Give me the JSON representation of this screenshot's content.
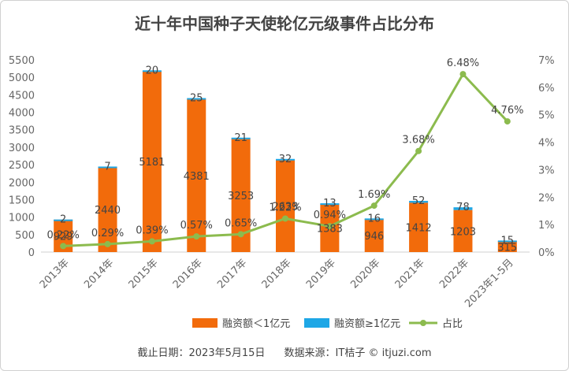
{
  "chart_data": {
    "type": "bar",
    "title": "近十年中国种子天使轮亿元级事件占比分布",
    "categories": [
      "2013年",
      "2014年",
      "2015年",
      "2016年",
      "2017年",
      "2018年",
      "2019年",
      "2020年",
      "2021年",
      "2022年",
      "2023年1-5月"
    ],
    "series": [
      {
        "name": "融资额＜1亿元",
        "type": "bar",
        "stack": "total",
        "color": "#f26b0b",
        "values": [
          929,
          2440,
          5181,
          4381,
          3253,
          2633,
          1383,
          946,
          1412,
          1203,
          315
        ],
        "labels": [
          "929",
          "2440",
          "5181",
          "4381",
          "3253",
          "2633",
          "1383",
          "946",
          "1412",
          "1203",
          "315"
        ]
      },
      {
        "name": "融资额≥1亿元",
        "type": "bar",
        "stack": "total",
        "color": "#1ea7e6",
        "values": [
          2,
          7,
          20,
          25,
          21,
          32,
          13,
          16,
          52,
          78,
          15
        ],
        "labels": [
          "2",
          "7",
          "20",
          "25",
          "21",
          "32",
          "13",
          "16",
          "52",
          "78",
          "15"
        ]
      },
      {
        "name": "占比",
        "type": "line",
        "axis": "right",
        "color": "#8cbb4e",
        "values": [
          0.22,
          0.29,
          0.39,
          0.57,
          0.65,
          1.22,
          0.94,
          1.69,
          3.68,
          6.48,
          4.76
        ],
        "labels": [
          "0.22%",
          "0.29%",
          "0.39%",
          "0.57%",
          "0.65%",
          "1.22%",
          "0.94%",
          "1.69%",
          "3.68%",
          "6.48%",
          "4.76%"
        ]
      }
    ],
    "y_left": {
      "min": 0,
      "max": 5500,
      "ticks": [
        "0",
        "500",
        "1000",
        "1500",
        "2000",
        "2500",
        "3000",
        "3500",
        "4000",
        "4500",
        "5000",
        "5500"
      ]
    },
    "y_right": {
      "min": 0,
      "max": 7,
      "ticks": [
        "0%",
        "1%",
        "2%",
        "3%",
        "4%",
        "5%",
        "6%",
        "7%"
      ]
    },
    "grid": false,
    "legend": "bottom-right"
  },
  "footer": {
    "date": "截止日期：2023年5月15日",
    "source": "数据来源：IT桔子 © itjuzi.com"
  }
}
